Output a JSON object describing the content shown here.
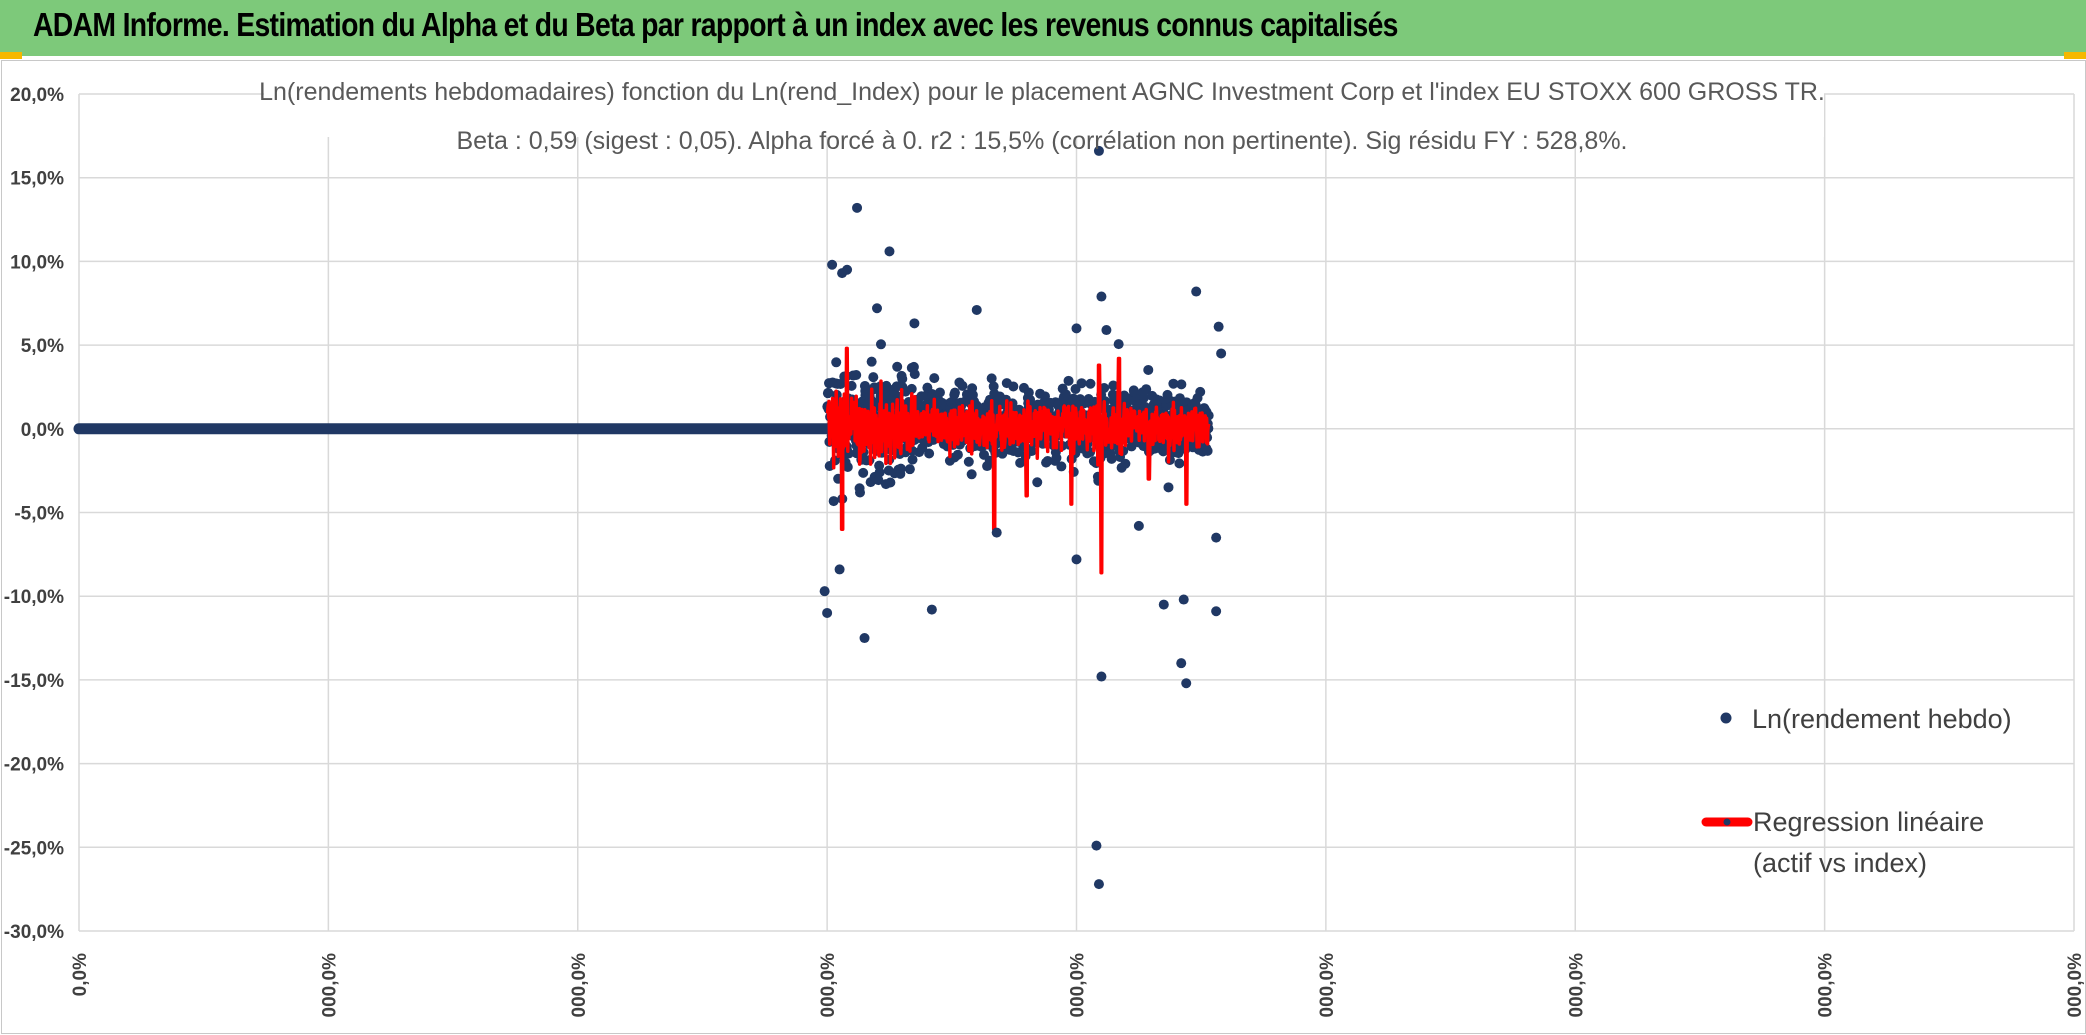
{
  "header": {
    "title": "ADAM Informe. Estimation du Alpha et du Beta par rapport à un index avec les revenus connus capitalisés"
  },
  "colors": {
    "header_bg": "#7dc97a",
    "scatter": "#203864",
    "regression": "#ff0000",
    "grid": "#d9d9d9",
    "corner": "#f5b800"
  },
  "chart_data": {
    "type": "scatter",
    "title_line1": "Ln(rendements hebdomadaires) fonction du Ln(rend_Index) pour le placement AGNC Investment Corp et l'index EU STOXX 600 GROSS TR.",
    "title_line2": "Beta : 0,59 (sigest : 0,05). Alpha forcé à 0. r2 : 15,5% (corrélation non pertinente). Sig résidu FY : 528,8%.",
    "y_ticks": [
      "20,0%",
      "15,0%",
      "10,0%",
      "5,0%",
      "0,0%",
      "-5,0%",
      "-10,0%",
      "-15,0%",
      "-20,0%",
      "-25,0%",
      "-30,0%"
    ],
    "y_tick_values": [
      20,
      15,
      10,
      5,
      0,
      -5,
      -10,
      -15,
      -20,
      -25,
      -30
    ],
    "ylim": [
      -30,
      20
    ],
    "x_ticks": [
      "0,0%",
      "000,0%",
      "000,0%",
      "000,0%",
      "000,0%",
      "000,0%",
      "000,0%",
      "000,0%",
      "000,0%"
    ],
    "x_tick_positions": [
      0,
      1,
      2,
      3,
      4,
      5,
      6,
      7,
      8
    ],
    "xlim": [
      0,
      8
    ],
    "series": [
      {
        "name": "Ln(rendement hebdo)",
        "kind": "scatter"
      },
      {
        "name": "Regression linéaire",
        "name_line2": "(actif vs index)",
        "kind": "line"
      }
    ],
    "flat_segment_x": [
      0,
      3
    ],
    "scatter_x_range": [
      3,
      4.53
    ],
    "outliers": [
      {
        "x": 2.99,
        "y": -9.7
      },
      {
        "x": 3.0,
        "y": -11.0
      },
      {
        "x": 3.02,
        "y": 9.8
      },
      {
        "x": 3.05,
        "y": -8.4
      },
      {
        "x": 3.06,
        "y": 9.3
      },
      {
        "x": 3.08,
        "y": 9.5
      },
      {
        "x": 3.12,
        "y": 13.2
      },
      {
        "x": 3.15,
        "y": -12.5
      },
      {
        "x": 3.25,
        "y": 10.6
      },
      {
        "x": 3.2,
        "y": 7.2
      },
      {
        "x": 3.35,
        "y": 6.3
      },
      {
        "x": 3.42,
        "y": -10.8
      },
      {
        "x": 3.6,
        "y": 7.1
      },
      {
        "x": 3.68,
        "y": -6.2
      },
      {
        "x": 4.0,
        "y": -7.8
      },
      {
        "x": 4.0,
        "y": 6.0
      },
      {
        "x": 4.09,
        "y": 16.6
      },
      {
        "x": 4.1,
        "y": 7.9
      },
      {
        "x": 4.12,
        "y": 5.9
      },
      {
        "x": 4.1,
        "y": -14.8
      },
      {
        "x": 4.08,
        "y": -24.9
      },
      {
        "x": 4.09,
        "y": -27.2
      },
      {
        "x": 4.25,
        "y": -5.8
      },
      {
        "x": 4.35,
        "y": -10.5
      },
      {
        "x": 4.43,
        "y": -10.2
      },
      {
        "x": 4.42,
        "y": -14.0
      },
      {
        "x": 4.48,
        "y": 8.2
      },
      {
        "x": 4.44,
        "y": -15.2
      },
      {
        "x": 4.57,
        "y": 6.1
      },
      {
        "x": 4.56,
        "y": -10.9
      },
      {
        "x": 4.56,
        "y": -6.5
      },
      {
        "x": 4.58,
        "y": 4.5
      }
    ],
    "regression_spikes": [
      {
        "x": 3.06,
        "y": -6.0
      },
      {
        "x": 3.08,
        "y": 4.8
      },
      {
        "x": 3.67,
        "y": -6.0
      },
      {
        "x": 3.8,
        "y": -4.0
      },
      {
        "x": 3.98,
        "y": -4.5
      },
      {
        "x": 4.1,
        "y": -8.6
      },
      {
        "x": 4.09,
        "y": 3.8
      },
      {
        "x": 4.17,
        "y": 4.2
      },
      {
        "x": 4.44,
        "y": -4.5
      },
      {
        "x": 4.56,
        "y": -5.2
      },
      {
        "x": 4.29,
        "y": -3.0
      }
    ]
  }
}
